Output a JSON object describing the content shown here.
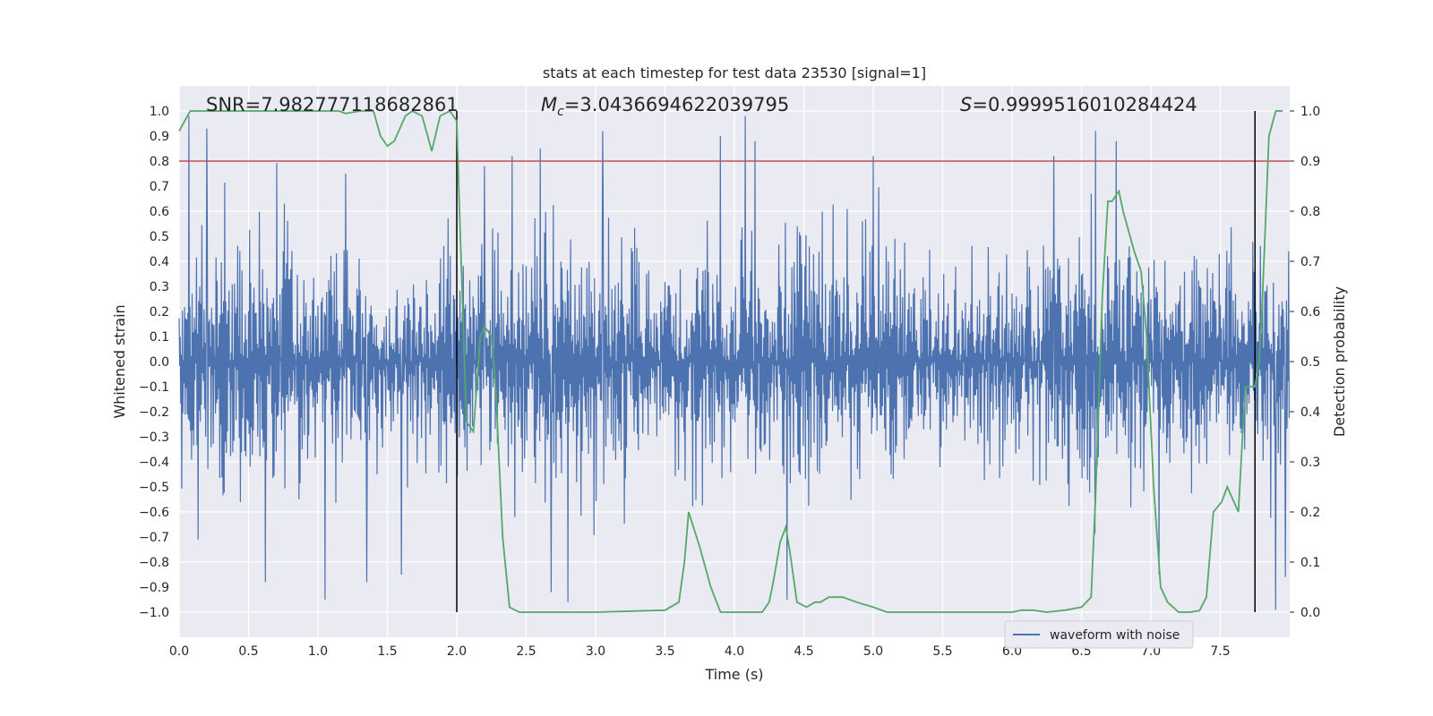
{
  "chart_data": {
    "type": "line",
    "title": "stats at each timestep for test data 23530 [signal=1]",
    "xlabel": "Time (s)",
    "ylabel_left": "Whitened strain",
    "ylabel_right": "Detection probability",
    "xlim": [
      0.0,
      8.0
    ],
    "ylim_left": [
      -1.1,
      1.1
    ],
    "ylim_right": [
      -0.05,
      1.05
    ],
    "x_ticks": [
      "0.0",
      "0.5",
      "1.0",
      "1.5",
      "2.0",
      "2.5",
      "3.0",
      "3.5",
      "4.0",
      "4.5",
      "5.0",
      "5.5",
      "6.0",
      "6.5",
      "7.0",
      "7.5"
    ],
    "y_ticks_left": [
      "1.0",
      "0.9",
      "0.8",
      "0.7",
      "0.6",
      "0.5",
      "0.4",
      "0.3",
      "0.2",
      "0.1",
      "0.0",
      "−0.1",
      "−0.2",
      "−0.3",
      "−0.4",
      "−0.5",
      "−0.6",
      "−0.7",
      "−0.8",
      "−0.9",
      "−1.0"
    ],
    "y_ticks_right": [
      "1.0",
      "0.9",
      "0.8",
      "0.7",
      "0.6",
      "0.5",
      "0.4",
      "0.3",
      "0.2",
      "0.1",
      "0.0"
    ],
    "grid": true,
    "legend": {
      "position": "bottom-right",
      "entries": [
        "waveform with noise"
      ]
    },
    "annotations": {
      "snr": "SNR=7.982777118682861",
      "mc_symbol": "M",
      "mc_sub": "c",
      "mc_value": "=3.0436694622039795",
      "s_symbol": "S",
      "s_value": "=0.9999516010284424"
    },
    "threshold": {
      "value": 0.8,
      "axis": "left",
      "color": "#c44e52"
    },
    "vlines": [
      2.0,
      7.75
    ],
    "strain_series": {
      "name": "waveform with noise",
      "color": "#4c72b0",
      "sample_rate_hz": 256,
      "amplitude_envelope": [
        0.45,
        0.6
      ],
      "peaks": [
        [
          0.07,
          0.98
        ],
        [
          0.2,
          0.93
        ],
        [
          0.62,
          -0.88
        ],
        [
          1.05,
          -0.95
        ],
        [
          1.2,
          0.75
        ],
        [
          1.35,
          -0.88
        ],
        [
          1.6,
          -0.85
        ],
        [
          2.2,
          0.78
        ],
        [
          2.4,
          0.82
        ],
        [
          2.6,
          0.85
        ],
        [
          2.68,
          -0.92
        ],
        [
          2.8,
          -0.96
        ],
        [
          3.05,
          0.92
        ],
        [
          4.08,
          0.98
        ],
        [
          4.15,
          0.88
        ],
        [
          3.9,
          0.9
        ],
        [
          4.38,
          -0.95
        ],
        [
          5.0,
          0.82
        ],
        [
          6.3,
          0.82
        ],
        [
          6.6,
          0.92
        ],
        [
          6.75,
          0.88
        ],
        [
          7.06,
          -0.85
        ],
        [
          7.9,
          -0.99
        ],
        [
          7.97,
          -0.86
        ]
      ]
    },
    "probability_series": {
      "color": "#55a868",
      "x": [
        0.0,
        0.08,
        0.5,
        1.0,
        1.15,
        1.2,
        1.3,
        1.4,
        1.45,
        1.5,
        1.55,
        1.63,
        1.68,
        1.75,
        1.82,
        1.88,
        1.95,
        2.0,
        2.02,
        2.07,
        2.12,
        2.17,
        2.2,
        2.25,
        2.28,
        2.33,
        2.38,
        2.45,
        2.6,
        3.0,
        3.5,
        3.6,
        3.64,
        3.67,
        3.75,
        3.83,
        3.9,
        4.2,
        4.25,
        4.28,
        4.33,
        4.37,
        4.4,
        4.45,
        4.52,
        4.58,
        4.62,
        4.68,
        4.73,
        4.78,
        4.88,
        5.0,
        5.1,
        5.5,
        6.0,
        6.07,
        6.15,
        6.25,
        6.38,
        6.5,
        6.57,
        6.6,
        6.65,
        6.69,
        6.72,
        6.77,
        6.8,
        6.88,
        6.93,
        6.97,
        7.02,
        7.07,
        7.12,
        7.2,
        7.28,
        7.35,
        7.4,
        7.45,
        7.51,
        7.55,
        7.63,
        7.68,
        7.7,
        7.75,
        7.78,
        7.8,
        7.85,
        7.9,
        7.95
      ],
      "y": [
        0.96,
        1.0,
        1.0,
        1.0,
        1.0,
        0.995,
        1.0,
        1.0,
        0.95,
        0.93,
        0.94,
        0.99,
        1.0,
        0.99,
        0.92,
        0.99,
        1.0,
        0.98,
        0.8,
        0.38,
        0.36,
        0.55,
        0.57,
        0.55,
        0.45,
        0.15,
        0.01,
        0.0,
        0.0,
        0.0,
        0.004,
        0.02,
        0.1,
        0.2,
        0.13,
        0.05,
        0.0,
        0.0,
        0.02,
        0.06,
        0.14,
        0.17,
        0.12,
        0.02,
        0.01,
        0.02,
        0.02,
        0.03,
        0.03,
        0.03,
        0.02,
        0.01,
        0.0,
        0.0,
        0.0,
        0.004,
        0.004,
        0.0,
        0.004,
        0.01,
        0.03,
        0.22,
        0.63,
        0.82,
        0.82,
        0.84,
        0.8,
        0.72,
        0.68,
        0.55,
        0.25,
        0.05,
        0.02,
        0.0,
        0.0,
        0.003,
        0.03,
        0.2,
        0.22,
        0.25,
        0.2,
        0.45,
        0.45,
        0.45,
        0.5,
        0.6,
        0.95,
        1.0,
        1.0
      ]
    }
  }
}
